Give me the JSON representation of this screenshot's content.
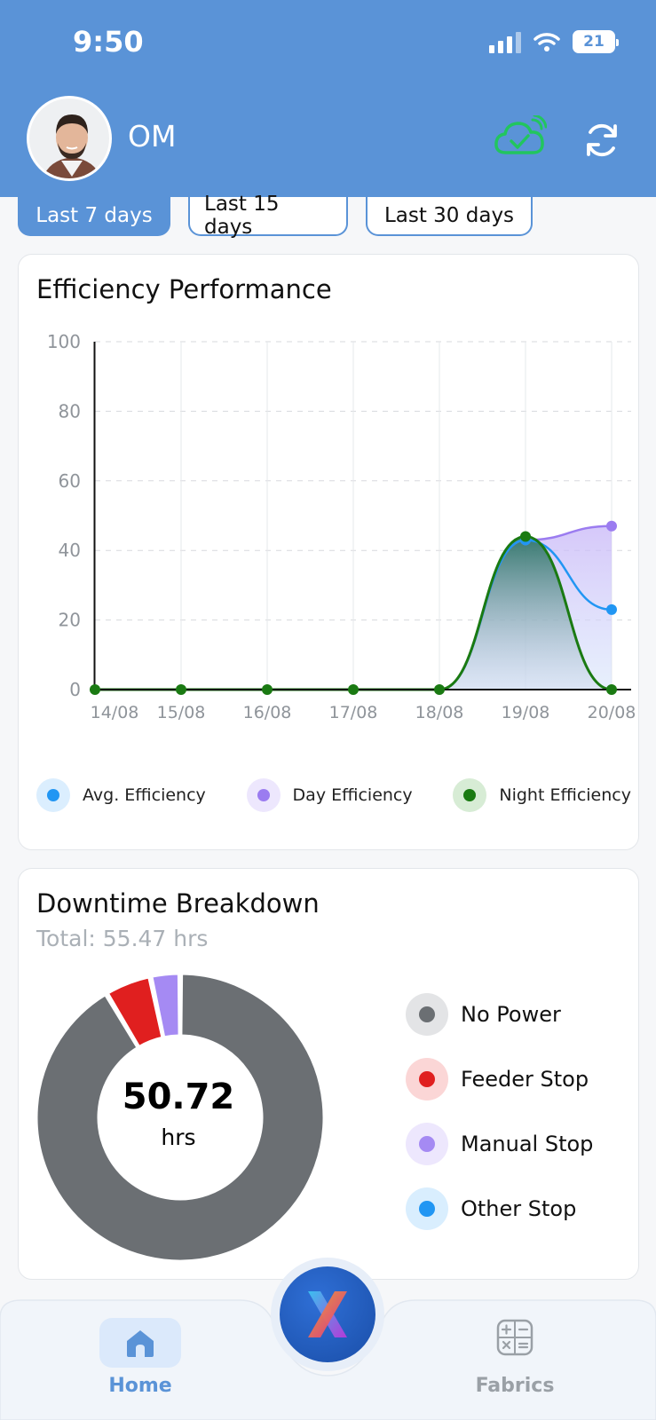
{
  "status_bar": {
    "time": "9:50",
    "battery": "21"
  },
  "header": {
    "username": "OM"
  },
  "tabs": [
    {
      "label": "Last 7 days",
      "active": true
    },
    {
      "label": "Last 15 days",
      "active": false
    },
    {
      "label": "Last 30 days",
      "active": false
    }
  ],
  "efficiency": {
    "title": "Efficiency Performance",
    "legend": [
      "Avg. Efficiency",
      "Day Efficiency",
      "Night Efficiency"
    ]
  },
  "downtime": {
    "title": "Downtime Breakdown",
    "total": "Total: 55.47 hrs",
    "center_value": "50.72",
    "center_unit": "hrs",
    "legend": [
      "No Power",
      "Feeder Stop",
      "Manual Stop",
      "Other Stop"
    ]
  },
  "nav": {
    "home": "Home",
    "fabrics": "Fabrics"
  },
  "colors": {
    "accent": "#5a93d7",
    "avg": "#2196f3",
    "day": "#9b7cf0",
    "night": "#1a7a12",
    "no_power": "#6b6f73",
    "feeder": "#e01f1f",
    "manual": "#a58af3",
    "other": "#2196f3"
  },
  "chart_data": [
    {
      "type": "area",
      "title": "Efficiency Performance",
      "categories": [
        "14/08",
        "15/08",
        "16/08",
        "17/08",
        "18/08",
        "19/08",
        "20/08"
      ],
      "ylim": [
        0,
        100
      ],
      "yticks": [
        0,
        20,
        40,
        60,
        80,
        100
      ],
      "grid": true,
      "legend_position": "bottom",
      "series": [
        {
          "name": "Avg. Efficiency",
          "values": [
            0,
            0,
            0,
            0,
            0,
            43,
            23
          ]
        },
        {
          "name": "Day Efficiency",
          "values": [
            0,
            0,
            0,
            0,
            0,
            43,
            47
          ]
        },
        {
          "name": "Night Efficiency",
          "values": [
            0,
            0,
            0,
            0,
            0,
            44,
            0
          ]
        }
      ]
    },
    {
      "type": "pie",
      "title": "Downtime Breakdown",
      "categories": [
        "No Power",
        "Feeder Stop",
        "Manual Stop",
        "Other Stop"
      ],
      "values": [
        50.72,
        2.9,
        1.85,
        0
      ]
    }
  ]
}
